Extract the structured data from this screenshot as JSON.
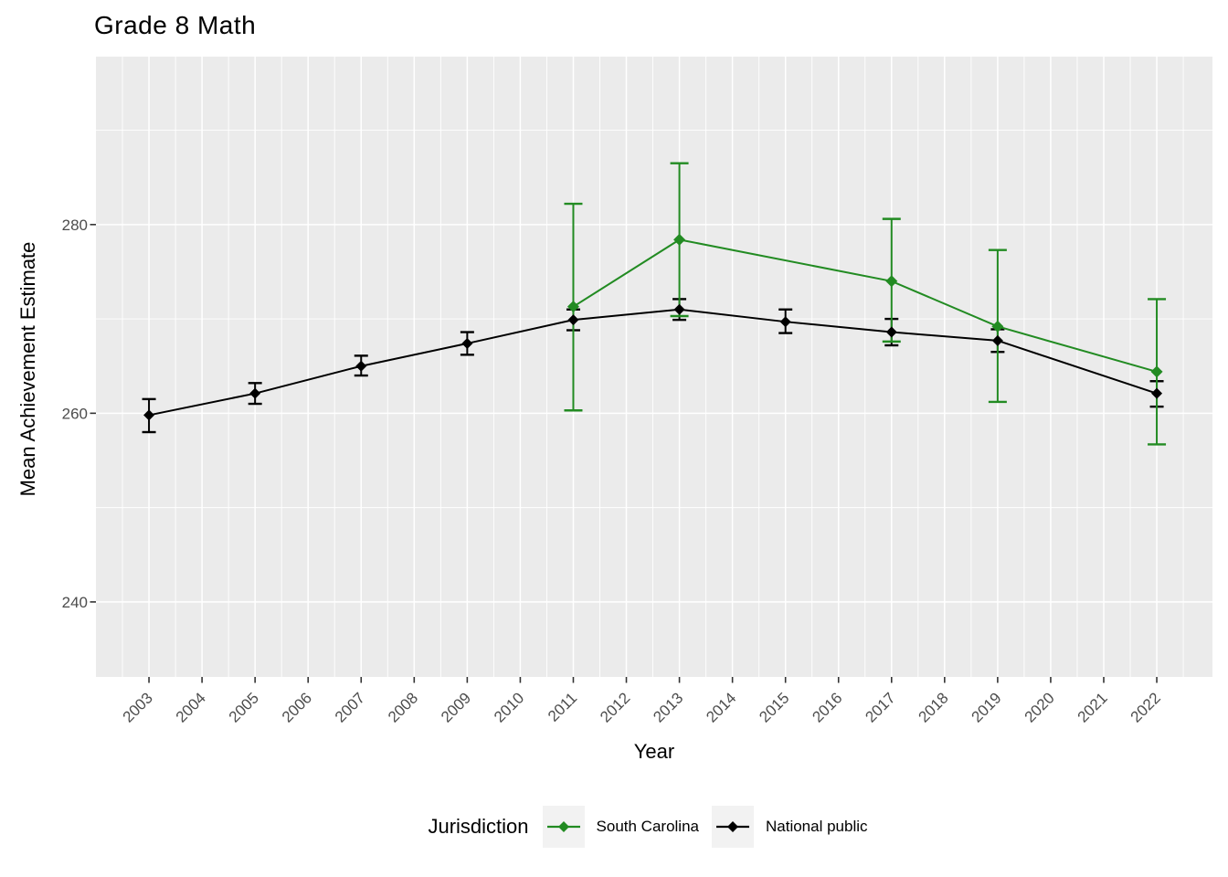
{
  "title": "Grade 8 Math",
  "axes": {
    "x_title": "Year",
    "y_title": "Mean Achievement Estimate"
  },
  "legend": {
    "title": "Jurisdiction",
    "items": [
      {
        "label": "South Carolina",
        "color": "#228B22"
      },
      {
        "label": "National public",
        "color": "#000000"
      }
    ]
  },
  "colors": {
    "panel_background": "#EBEBEB",
    "gridline": "#FFFFFF",
    "axis_text": "#4D4D4D",
    "tick_mark": "#333333",
    "legend_key_background": "#F2F2F2",
    "south_carolina": "#228B22",
    "national_public": "#000000"
  },
  "chart_data": {
    "type": "line",
    "title": "Grade 8 Math",
    "xlabel": "Year",
    "ylabel": "Mean Achievement Estimate",
    "legend_title": "Jurisdiction",
    "legend_position": "bottom",
    "grid": true,
    "error_bars": true,
    "marker": "diamond",
    "x_ticks": [
      2003,
      2004,
      2005,
      2006,
      2007,
      2008,
      2009,
      2010,
      2011,
      2012,
      2013,
      2014,
      2015,
      2016,
      2017,
      2018,
      2019,
      2020,
      2021,
      2022
    ],
    "x_tick_labels": [
      "2003",
      "2004",
      "2005",
      "2006",
      "2007",
      "2008",
      "2009",
      "2010",
      "2011",
      "2012",
      "2013",
      "2014",
      "2015",
      "2016",
      "2017",
      "2018",
      "2019",
      "2020",
      "2021",
      "2022"
    ],
    "y_ticks": [
      240,
      260,
      280
    ],
    "y_tick_labels": [
      "240",
      "260",
      "280"
    ],
    "y_minor_gridlines": [
      250,
      270,
      290
    ],
    "xlim": [
      2002.0,
      2023.05
    ],
    "ylim": [
      232.05,
      297.8
    ],
    "series": [
      {
        "name": "National public",
        "color": "#000000",
        "points": [
          {
            "year": 2003,
            "value": 259.8,
            "lo": 258.0,
            "hi": 261.5
          },
          {
            "year": 2005,
            "value": 262.1,
            "lo": 261.0,
            "hi": 263.2
          },
          {
            "year": 2007,
            "value": 265.0,
            "lo": 264.0,
            "hi": 266.1
          },
          {
            "year": 2009,
            "value": 267.4,
            "lo": 266.2,
            "hi": 268.6
          },
          {
            "year": 2011,
            "value": 269.9,
            "lo": 268.8,
            "hi": 271.0
          },
          {
            "year": 2013,
            "value": 271.0,
            "lo": 269.9,
            "hi": 272.1
          },
          {
            "year": 2015,
            "value": 269.7,
            "lo": 268.5,
            "hi": 271.0
          },
          {
            "year": 2017,
            "value": 268.6,
            "lo": 267.2,
            "hi": 270.0
          },
          {
            "year": 2019,
            "value": 267.7,
            "lo": 266.5,
            "hi": 268.9
          },
          {
            "year": 2022,
            "value": 262.1,
            "lo": 260.7,
            "hi": 263.4
          }
        ]
      },
      {
        "name": "South Carolina",
        "color": "#228B22",
        "points": [
          {
            "year": 2011,
            "value": 271.3,
            "lo": 260.3,
            "hi": 282.2
          },
          {
            "year": 2013,
            "value": 278.4,
            "lo": 270.3,
            "hi": 286.5
          },
          {
            "year": 2017,
            "value": 274.0,
            "lo": 267.6,
            "hi": 280.6
          },
          {
            "year": 2019,
            "value": 269.2,
            "lo": 261.2,
            "hi": 277.3
          },
          {
            "year": 2022,
            "value": 264.4,
            "lo": 256.7,
            "hi": 272.1
          }
        ]
      }
    ]
  }
}
